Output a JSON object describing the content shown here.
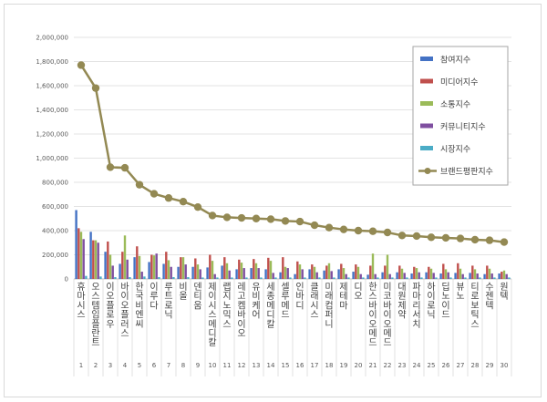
{
  "chart_data": {
    "type": "bar+line",
    "title": "",
    "xlabel": "",
    "ylabel": "",
    "ylim": [
      0,
      2000000
    ],
    "ytick_step": 200000,
    "legend_position": "top-right",
    "grid": true,
    "ranks": [
      "1",
      "2",
      "3",
      "4",
      "5",
      "6",
      "7",
      "8",
      "9",
      "10",
      "11",
      "12",
      "13",
      "14",
      "15",
      "16",
      "17",
      "18",
      "19",
      "20",
      "21",
      "22",
      "23",
      "24",
      "25",
      "26",
      "27",
      "28",
      "29",
      "30"
    ],
    "categories": [
      "휴마시스",
      "오스템임플란트",
      "이오플로우",
      "바이오플러스",
      "한국비엔씨",
      "이루다",
      "루트로닉",
      "비올",
      "덴티움",
      "제이시스메디칼",
      "랩지노믹스",
      "레고켐바이오",
      "유비케어",
      "세종메디칼",
      "셀루메드",
      "인바디",
      "클래시스",
      "미래컴퍼니",
      "제테마",
      "디오",
      "한스바이오메드",
      "미코바이오메드",
      "대원제약",
      "파마리서치",
      "하이로닉",
      "딥노이드",
      "뷰노",
      "티로보틱스",
      "수젠텍",
      "원텍"
    ],
    "series": [
      {
        "name": "참여지수",
        "type": "bar",
        "color": "#4472c4",
        "values": [
          570000,
          390000,
          225000,
          125000,
          180000,
          140000,
          125000,
          100000,
          100000,
          95000,
          110000,
          80000,
          90000,
          80000,
          55000,
          40000,
          80000,
          70000,
          80000,
          60000,
          35000,
          55000,
          55000,
          45000,
          55000,
          45000,
          50000,
          50000,
          40000,
          45000
        ]
      },
      {
        "name": "미디어지수",
        "type": "bar",
        "color": "#c0504d",
        "values": [
          420000,
          320000,
          310000,
          225000,
          270000,
          200000,
          225000,
          180000,
          170000,
          200000,
          180000,
          160000,
          165000,
          175000,
          180000,
          145000,
          120000,
          110000,
          125000,
          120000,
          110000,
          110000,
          110000,
          100000,
          100000,
          125000,
          130000,
          110000,
          110000,
          60000
        ]
      },
      {
        "name": "소통지수",
        "type": "bar",
        "color": "#9bbb59",
        "values": [
          390000,
          320000,
          200000,
          360000,
          190000,
          195000,
          155000,
          180000,
          120000,
          150000,
          130000,
          135000,
          130000,
          150000,
          100000,
          120000,
          100000,
          130000,
          90000,
          100000,
          210000,
          200000,
          85000,
          90000,
          85000,
          80000,
          85000,
          80000,
          85000,
          70000
        ]
      },
      {
        "name": "커뮤니티지수",
        "type": "bar",
        "color": "#7f4fa0",
        "values": [
          330000,
          300000,
          110000,
          160000,
          60000,
          210000,
          100000,
          120000,
          80000,
          40000,
          70000,
          90000,
          90000,
          50000,
          90000,
          80000,
          55000,
          65000,
          40000,
          40000,
          40000,
          40000,
          50000,
          55000,
          50000,
          55000,
          40000,
          45000,
          45000,
          40000
        ]
      },
      {
        "name": "시장지수",
        "type": "bar",
        "color": "#4bacc6",
        "values": [
          25000,
          20000,
          15000,
          15000,
          20000,
          15000,
          15000,
          15000,
          12000,
          12000,
          12000,
          12000,
          12000,
          12000,
          12000,
          12000,
          12000,
          12000,
          12000,
          12000,
          12000,
          12000,
          12000,
          12000,
          12000,
          12000,
          12000,
          12000,
          12000,
          12000
        ]
      },
      {
        "name": "브랜드평판지수",
        "type": "line",
        "color": "#938953",
        "values": [
          1770000,
          1580000,
          925000,
          920000,
          780000,
          705000,
          670000,
          640000,
          595000,
          525000,
          510000,
          505000,
          500000,
          495000,
          480000,
          475000,
          445000,
          425000,
          410000,
          400000,
          395000,
          385000,
          360000,
          355000,
          345000,
          340000,
          335000,
          325000,
          320000,
          305000
        ]
      }
    ]
  }
}
